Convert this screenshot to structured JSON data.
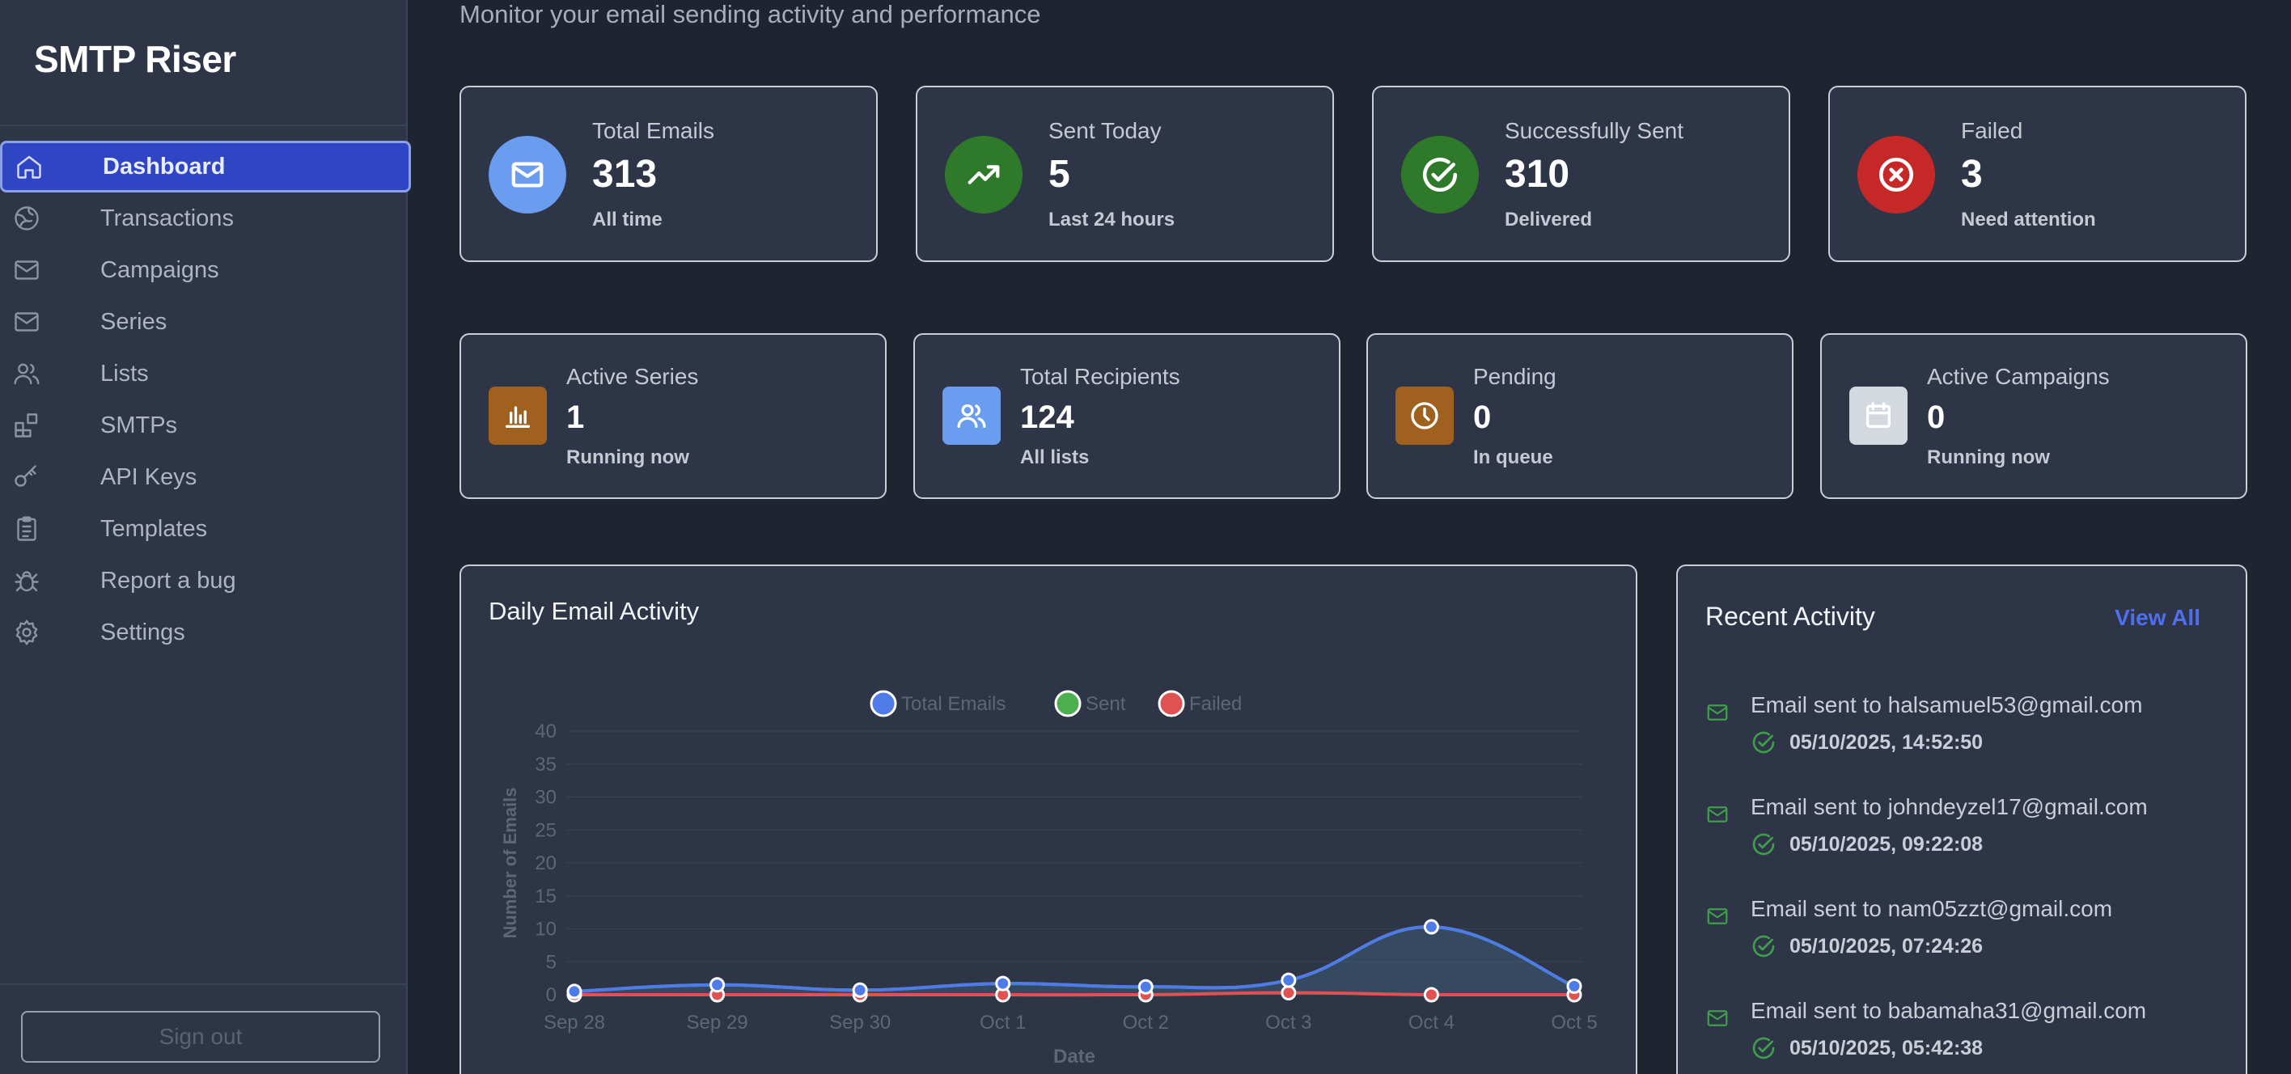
{
  "app": {
    "name": "SMTP Riser"
  },
  "page": {
    "subtitle": "Monitor your email sending activity and performance"
  },
  "sidebar": {
    "items": [
      {
        "label": "Dashboard",
        "icon": "home-icon",
        "active": true
      },
      {
        "label": "Transactions",
        "icon": "globe-icon"
      },
      {
        "label": "Campaigns",
        "icon": "mail-icon"
      },
      {
        "label": "Series",
        "icon": "mail-icon"
      },
      {
        "label": "Lists",
        "icon": "users-icon"
      },
      {
        "label": "SMTPs",
        "icon": "apps-icon"
      },
      {
        "label": "API Keys",
        "icon": "key-icon"
      },
      {
        "label": "Templates",
        "icon": "clipboard-icon"
      },
      {
        "label": "Report a bug",
        "icon": "bug-icon"
      },
      {
        "label": "Settings",
        "icon": "gear-icon"
      }
    ],
    "signout_label": "Sign out"
  },
  "stats_row1": [
    {
      "label": "Total Emails",
      "value": "313",
      "sub": "All time",
      "icon": "mail-icon",
      "color": "#6a9cf0"
    },
    {
      "label": "Sent Today",
      "value": "5",
      "sub": "Last 24 hours",
      "icon": "trending-up-icon",
      "color": "#2f7a2a"
    },
    {
      "label": "Successfully Sent",
      "value": "310",
      "sub": "Delivered",
      "icon": "check-circle-icon",
      "color": "#2f7a2a"
    },
    {
      "label": "Failed",
      "value": "3",
      "sub": "Need attention",
      "icon": "x-circle-icon",
      "color": "#c62828"
    }
  ],
  "stats_row2": [
    {
      "label": "Active Series",
      "value": "1",
      "sub": "Running now",
      "icon": "bar-chart-icon",
      "color": "#a0611f"
    },
    {
      "label": "Total Recipients",
      "value": "124",
      "sub": "All lists",
      "icon": "users-icon",
      "color": "#6a9cf0"
    },
    {
      "label": "Pending",
      "value": "0",
      "sub": "In queue",
      "icon": "clock-icon",
      "color": "#a0611f"
    },
    {
      "label": "Active Campaigns",
      "value": "0",
      "sub": "Running now",
      "icon": "calendar-icon",
      "color": "#d4d8df"
    }
  ],
  "activity_chart": {
    "title": "Daily Email Activity"
  },
  "chart_data": {
    "type": "line",
    "title": "",
    "x": [
      "Sep 28",
      "Sep 29",
      "Sep 30",
      "Oct 1",
      "Oct 2",
      "Oct 3",
      "Oct 4",
      "Oct 5"
    ],
    "series": [
      {
        "name": "Total Emails",
        "values": [
          0.5,
          1.5,
          0.7,
          1.7,
          1.2,
          2.2,
          10.3,
          1.3
        ],
        "color": "#4f7be8"
      },
      {
        "name": "Sent",
        "values": [
          0.5,
          1.5,
          0.7,
          1.7,
          1.2,
          2.2,
          10.3,
          1.3
        ],
        "color": "#4caf50"
      },
      {
        "name": "Failed",
        "values": [
          0.0,
          0.0,
          0.0,
          0.0,
          0.0,
          0.3,
          0.0,
          0.0
        ],
        "color": "#e05252"
      }
    ],
    "xlabel": "Date",
    "ylabel": "Number of Emails",
    "ylim": [
      0,
      40
    ],
    "yticks": [
      0,
      5,
      10,
      15,
      20,
      25,
      30,
      35,
      40
    ],
    "legend": "top-center",
    "grid": true
  },
  "recent_activity": {
    "title": "Recent Activity",
    "view_all": "View All",
    "items": [
      {
        "text": "Email sent to halsamuel53@gmail.com",
        "time": "05/10/2025, 14:52:50"
      },
      {
        "text": "Email sent to johndeyzel17@gmail.com",
        "time": "05/10/2025, 09:22:08"
      },
      {
        "text": "Email sent to nam05zzt@gmail.com",
        "time": "05/10/2025, 07:24:26"
      },
      {
        "text": "Email sent to babamaha31@gmail.com",
        "time": "05/10/2025, 05:42:38"
      }
    ]
  }
}
